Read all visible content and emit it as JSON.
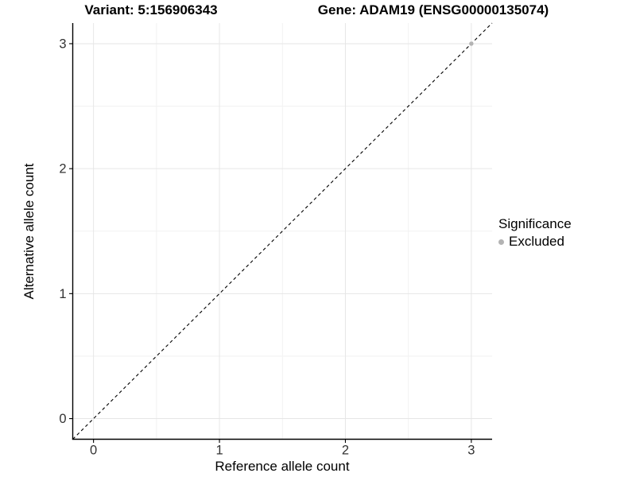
{
  "titles": {
    "variant": "Variant: 5:156906343",
    "gene": "Gene: ADAM19 (ENSG00000135074)"
  },
  "chart_data": {
    "type": "scatter",
    "title": "Variant: 5:156906343 — Gene: ADAM19 (ENSG00000135074)",
    "xlabel": "Reference allele count",
    "ylabel": "Alternative allele count",
    "x_ticks": [
      0,
      1,
      2,
      3
    ],
    "y_ticks": [
      0,
      1,
      2,
      3
    ],
    "xlim": [
      -0.165,
      3.165
    ],
    "ylim": [
      -0.165,
      3.165
    ],
    "grid": {
      "major": true,
      "minor": true,
      "major_color": "#e6e6e6",
      "minor_color": "#f2f2f2"
    },
    "reference_line": {
      "type": "identity",
      "style": "dashed",
      "color": "#000000",
      "from": [
        -0.165,
        -0.165
      ],
      "to": [
        3.165,
        3.165
      ]
    },
    "series": [
      {
        "name": "Excluded",
        "color": "#b3b3b3",
        "points": [
          [
            3,
            3
          ]
        ]
      }
    ],
    "legend": {
      "title": "Significance",
      "position": "right",
      "items": [
        {
          "label": "Excluded",
          "color": "#b3b3b3"
        }
      ]
    }
  }
}
